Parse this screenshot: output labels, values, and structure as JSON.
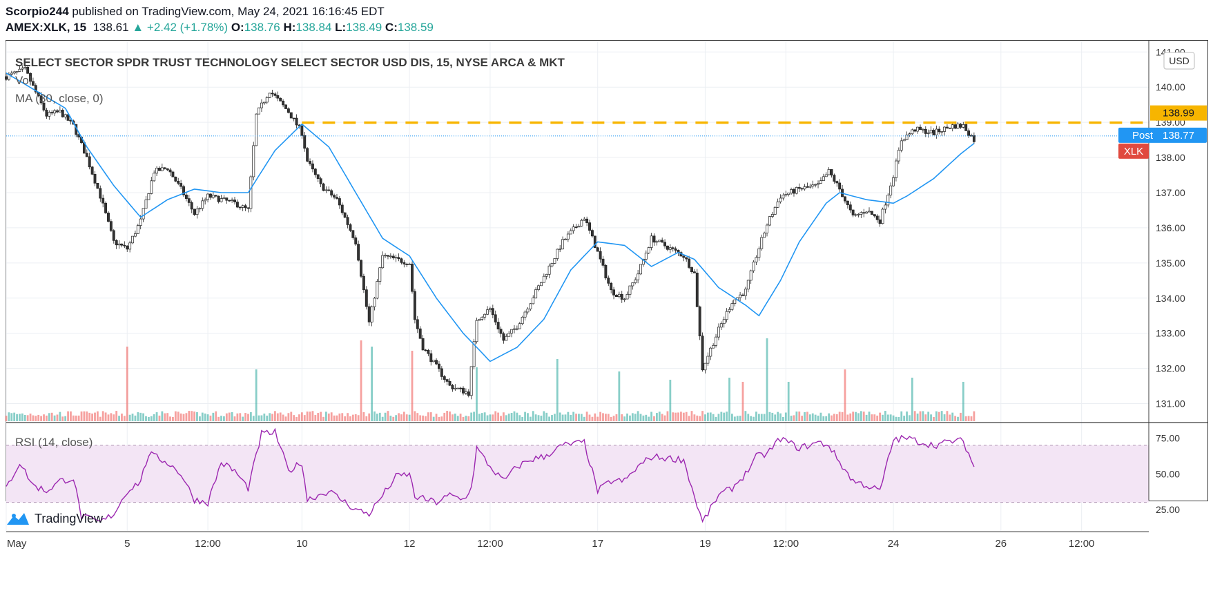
{
  "header": {
    "author": "Scorpio244",
    "published_text": "published on TradingView.com, May 24, 2021 16:16:45 EDT",
    "symbol": "AMEX:XLK, 15",
    "last": "138.61",
    "change": "+2.42 (+1.78%)",
    "o_label": "O:",
    "o": "138.76",
    "h_label": "H:",
    "h": "138.84",
    "l_label": "L:",
    "l": "138.49",
    "c_label": "C:",
    "c": "138.59"
  },
  "pane_titles": {
    "main": "SELECT SECTOR SPDR TRUST TECHNOLOGY SELECT SECTOR USD DIS, 15, NYSE ARCA & MKT",
    "vol": "Vol",
    "ma": "MA (30, close, 0)",
    "rsi": "RSI (14, close)"
  },
  "currency_label": "USD",
  "price_tags": {
    "resistance": "138.99",
    "post_label": "Post",
    "post": "138.77",
    "symbol_tag": "XLK"
  },
  "footer": {
    "brand": "TradingView"
  },
  "colors": {
    "up": "#26a69a",
    "down": "#ef5350",
    "ma": "#2196f3",
    "rsi": "#9c27b0",
    "rsi_band": "#f3e5f5",
    "resistance": "#f7b500",
    "post": "#2196f3",
    "symbol_tag": "#e04a3f"
  },
  "chart_data": [
    {
      "type": "candlestick",
      "title": "SELECT SECTOR SPDR TRUST TECHNOLOGY SELECT SECTOR USD DIS, 15, NYSE ARCA & MKT",
      "ylim": [
        130.5,
        141.3
      ],
      "y_ticks": [
        "141.00",
        "140.00",
        "139.00",
        "138.00",
        "137.00",
        "136.00",
        "135.00",
        "134.00",
        "133.00",
        "132.00",
        "131.00"
      ],
      "x_ticks": [
        "May",
        "5",
        "12:00",
        "10",
        "12",
        "12:00",
        "17",
        "19",
        "12:00",
        "24",
        "26",
        "12:00"
      ],
      "x_tick_positions": [
        0,
        4.5,
        7.5,
        11,
        15,
        18,
        22,
        26,
        29,
        33,
        37,
        40
      ],
      "x_range": [
        0,
        42.5
      ],
      "waypoints": [
        [
          0,
          140.3
        ],
        [
          0.7,
          140.5
        ],
        [
          1.5,
          139.2
        ],
        [
          2,
          139.3
        ],
        [
          2.5,
          138.9
        ],
        [
          3,
          138.0
        ],
        [
          3.5,
          136.9
        ],
        [
          4,
          135.6
        ],
        [
          4.5,
          135.4
        ],
        [
          5,
          136.2
        ],
        [
          5.5,
          137.6
        ],
        [
          6,
          137.7
        ],
        [
          6.5,
          137.1
        ],
        [
          7,
          136.4
        ],
        [
          7.5,
          136.9
        ],
        [
          8,
          136.8
        ],
        [
          8.5,
          136.7
        ],
        [
          9,
          136.5
        ],
        [
          9.3,
          139.2
        ],
        [
          9.8,
          139.9
        ],
        [
          10.5,
          139.3
        ],
        [
          11,
          138.7
        ],
        [
          11.2,
          137.9
        ],
        [
          11.7,
          137.2
        ],
        [
          12.3,
          136.8
        ],
        [
          13,
          135.6
        ],
        [
          13.5,
          133.3
        ],
        [
          14,
          135.2
        ],
        [
          15,
          135.0
        ],
        [
          15.2,
          133.4
        ],
        [
          15.5,
          132.6
        ],
        [
          16.5,
          131.5
        ],
        [
          17.2,
          131.3
        ],
        [
          17.5,
          133.4
        ],
        [
          18,
          133.7
        ],
        [
          18.5,
          132.8
        ],
        [
          19,
          133.2
        ],
        [
          19.5,
          133.9
        ],
        [
          20,
          134.6
        ],
        [
          20.7,
          135.6
        ],
        [
          21.5,
          136.3
        ],
        [
          22,
          135.3
        ],
        [
          22.5,
          134.2
        ],
        [
          23,
          134.0
        ],
        [
          23.5,
          134.7
        ],
        [
          24,
          135.7
        ],
        [
          25.2,
          135.2
        ],
        [
          25.6,
          134.7
        ],
        [
          25.9,
          132.0
        ],
        [
          26.5,
          133.1
        ],
        [
          27,
          133.9
        ],
        [
          27.5,
          134.2
        ],
        [
          27.9,
          135.2
        ],
        [
          28.3,
          136.1
        ],
        [
          28.8,
          136.9
        ],
        [
          29.5,
          137.1
        ],
        [
          30.2,
          137.2
        ],
        [
          30.6,
          137.6
        ],
        [
          31,
          137.1
        ],
        [
          31.5,
          136.3
        ],
        [
          32,
          136.5
        ],
        [
          32.5,
          136.2
        ],
        [
          33,
          137.5
        ],
        [
          33.3,
          138.5
        ],
        [
          33.8,
          138.8
        ],
        [
          34.5,
          138.7
        ],
        [
          35.2,
          138.9
        ],
        [
          35.6,
          138.9
        ],
        [
          36,
          138.5
        ]
      ],
      "ma_30": [
        [
          0,
          140.4
        ],
        [
          2.2,
          139.4
        ],
        [
          3,
          138.3
        ],
        [
          4,
          137.2
        ],
        [
          5,
          136.3
        ],
        [
          6,
          136.8
        ],
        [
          7,
          137.1
        ],
        [
          8,
          137.0
        ],
        [
          9,
          137.0
        ],
        [
          10,
          138.2
        ],
        [
          11,
          138.95
        ],
        [
          12,
          138.3
        ],
        [
          13,
          137.0
        ],
        [
          14,
          135.7
        ],
        [
          15,
          135.2
        ],
        [
          16,
          134.0
        ],
        [
          17,
          133.0
        ],
        [
          18,
          132.2
        ],
        [
          19,
          132.6
        ],
        [
          20,
          133.4
        ],
        [
          21,
          134.8
        ],
        [
          22,
          135.6
        ],
        [
          23,
          135.5
        ],
        [
          24,
          134.9
        ],
        [
          25,
          135.3
        ],
        [
          25.6,
          135.1
        ],
        [
          26.5,
          134.3
        ],
        [
          27.5,
          133.8
        ],
        [
          28,
          133.5
        ],
        [
          28.8,
          134.5
        ],
        [
          29.5,
          135.6
        ],
        [
          30.5,
          136.7
        ],
        [
          31,
          137.0
        ],
        [
          32,
          136.8
        ],
        [
          33,
          136.7
        ],
        [
          33.5,
          136.9
        ],
        [
          34.5,
          137.4
        ],
        [
          35.5,
          138.1
        ],
        [
          36,
          138.4
        ]
      ],
      "resistance_level": 138.99,
      "post_price": 138.77,
      "volume_spikes": [
        [
          4.5,
          0.72
        ],
        [
          9.3,
          0.5
        ],
        [
          13.2,
          0.78
        ],
        [
          13.6,
          0.72
        ],
        [
          15.1,
          0.68
        ],
        [
          17.5,
          0.52
        ],
        [
          20.5,
          0.6
        ],
        [
          22.8,
          0.48
        ],
        [
          24.7,
          0.4
        ],
        [
          26.9,
          0.42
        ],
        [
          27.4,
          0.38
        ],
        [
          28.3,
          0.8
        ],
        [
          29.1,
          0.38
        ],
        [
          31.2,
          0.5
        ],
        [
          33.7,
          0.42
        ],
        [
          35.6,
          0.38
        ]
      ]
    },
    {
      "type": "line",
      "title": "RSI (14, close)",
      "ylim": [
        10,
        85
      ],
      "y_ticks": [
        "75.00",
        "50.00",
        "25.00"
      ],
      "band": [
        30,
        70
      ],
      "waypoints": [
        [
          0,
          40
        ],
        [
          0.5,
          58
        ],
        [
          1,
          42
        ],
        [
          1.5,
          38
        ],
        [
          2,
          45
        ],
        [
          2.5,
          47
        ],
        [
          2.8,
          20
        ],
        [
          3.5,
          16
        ],
        [
          4,
          22
        ],
        [
          4.5,
          38
        ],
        [
          5,
          45
        ],
        [
          5.3,
          64
        ],
        [
          6,
          58
        ],
        [
          6.5,
          50
        ],
        [
          7,
          32
        ],
        [
          7.5,
          30
        ],
        [
          8,
          58
        ],
        [
          8.5,
          52
        ],
        [
          9,
          40
        ],
        [
          9.5,
          78
        ],
        [
          10,
          79
        ],
        [
          10.5,
          52
        ],
        [
          11,
          58
        ],
        [
          11.2,
          32
        ],
        [
          12,
          38
        ],
        [
          13,
          25
        ],
        [
          13.5,
          22
        ],
        [
          14,
          35
        ],
        [
          14.5,
          48
        ],
        [
          15,
          50
        ],
        [
          15.2,
          34
        ],
        [
          16,
          30
        ],
        [
          16.5,
          35
        ],
        [
          17,
          32
        ],
        [
          17.3,
          40
        ],
        [
          17.5,
          68
        ],
        [
          18,
          55
        ],
        [
          18.5,
          45
        ],
        [
          19,
          55
        ],
        [
          19.5,
          60
        ],
        [
          20,
          62
        ],
        [
          20.7,
          70
        ],
        [
          21.5,
          72
        ],
        [
          22,
          38
        ],
        [
          22.5,
          45
        ],
        [
          23,
          45
        ],
        [
          23.5,
          55
        ],
        [
          24,
          62
        ],
        [
          25.2,
          60
        ],
        [
          25.6,
          34
        ],
        [
          25.9,
          16
        ],
        [
          26.5,
          35
        ],
        [
          27,
          40
        ],
        [
          27.5,
          50
        ],
        [
          27.9,
          62
        ],
        [
          28.3,
          64
        ],
        [
          28.8,
          75
        ],
        [
          29.5,
          68
        ],
        [
          30.2,
          72
        ],
        [
          30.6,
          70
        ],
        [
          31,
          58
        ],
        [
          31.5,
          45
        ],
        [
          32,
          42
        ],
        [
          32.5,
          38
        ],
        [
          33,
          74
        ],
        [
          33.5,
          75
        ],
        [
          34.5,
          70
        ],
        [
          35.2,
          73
        ],
        [
          35.6,
          73
        ],
        [
          36,
          55
        ]
      ]
    }
  ]
}
